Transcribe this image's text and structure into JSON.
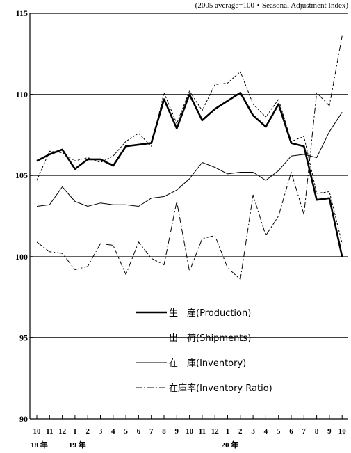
{
  "chart_data": {
    "type": "line",
    "title": "",
    "subtitle": "(2005 average=100・Seasonal Adjustment Index)",
    "xlabel": "",
    "ylabel": "",
    "ylim": [
      90,
      115
    ],
    "yticks": [
      "90",
      "95",
      "100",
      "105",
      "110",
      "115"
    ],
    "gridlines_at": [
      95,
      100,
      105,
      110
    ],
    "categories": [
      "10",
      "11",
      "12",
      "1",
      "2",
      "3",
      "4",
      "5",
      "6",
      "7",
      "8",
      "9",
      "10",
      "11",
      "12",
      "1",
      "2",
      "3",
      "4",
      "5",
      "6",
      "7",
      "8",
      "9",
      "10"
    ],
    "year_labels": [
      {
        "index": 0,
        "label": "18 年"
      },
      {
        "index": 3,
        "label": "19 年"
      },
      {
        "index": 15,
        "label": "20 年"
      }
    ],
    "legend_placement": "lower-center",
    "series": [
      {
        "name": "生　産(Production)",
        "style": "solid-thick",
        "color": "#000000",
        "values": [
          105.9,
          106.3,
          106.6,
          105.4,
          106.0,
          106.0,
          105.6,
          106.8,
          106.9,
          107.0,
          109.7,
          107.9,
          110.0,
          108.4,
          109.1,
          109.6,
          110.1,
          108.7,
          108.0,
          109.4,
          107.0,
          106.8,
          103.5,
          103.6,
          100.0
        ]
      },
      {
        "name": "出　荷(Shipments)",
        "style": "dashed",
        "color": "#000000",
        "values": [
          104.7,
          106.5,
          106.4,
          105.9,
          106.1,
          105.8,
          106.2,
          107.1,
          107.6,
          106.8,
          110.1,
          108.2,
          110.2,
          109.0,
          110.6,
          110.7,
          111.4,
          109.4,
          108.6,
          109.7,
          107.1,
          107.4,
          103.9,
          104.0,
          100.8
        ]
      },
      {
        "name": "在　庫(Inventory)",
        "style": "solid-thin",
        "color": "#000000",
        "values": [
          103.1,
          103.2,
          104.3,
          103.4,
          103.1,
          103.3,
          103.2,
          103.2,
          103.1,
          103.6,
          103.7,
          104.1,
          104.8,
          105.8,
          105.5,
          105.1,
          105.2,
          105.2,
          104.7,
          105.3,
          106.2,
          106.3,
          106.1,
          107.7,
          108.9
        ]
      },
      {
        "name": "在庫率(Inventory Ratio)",
        "style": "dash-dot",
        "color": "#000000",
        "values": [
          100.9,
          100.3,
          100.2,
          99.2,
          99.4,
          100.8,
          100.7,
          98.9,
          100.9,
          99.9,
          99.5,
          103.4,
          99.1,
          101.1,
          101.3,
          99.3,
          98.6,
          103.8,
          101.3,
          102.5,
          105.2,
          102.6,
          110.1,
          109.3,
          113.6
        ]
      }
    ]
  }
}
